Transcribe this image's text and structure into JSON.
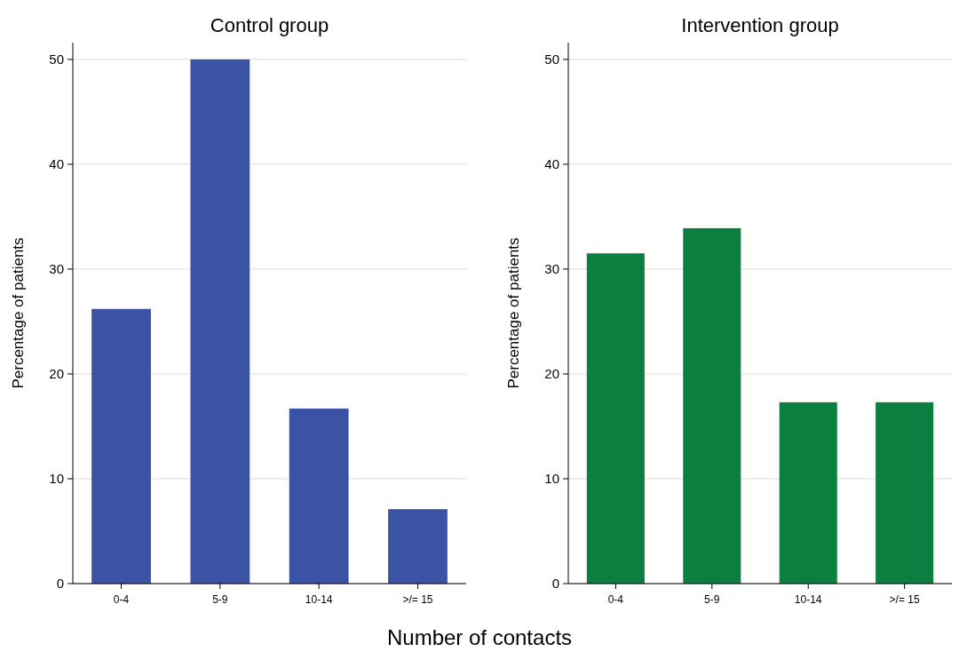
{
  "chart_data": [
    {
      "type": "bar",
      "title": "Control group",
      "ylabel": "Percentage of patients",
      "xlabel": "Number of contacts",
      "categories": [
        "0-4",
        "5-9",
        "10-14",
        ">/= 15"
      ],
      "values": [
        26.2,
        50,
        16.7,
        7.1
      ],
      "color": "#3a53a4",
      "ylim": [
        0,
        51.6
      ],
      "yticks": [
        0,
        10,
        20,
        30,
        40,
        50
      ],
      "grid": "y"
    },
    {
      "type": "bar",
      "title": "Intervention group",
      "ylabel": "Percentage of patients",
      "categories": [
        "0-4",
        "5-9",
        "10-14",
        ">/= 15"
      ],
      "values": [
        31.5,
        33.9,
        17.3,
        17.3
      ],
      "color": "#0a7f3f",
      "ylim": [
        0,
        51.6
      ],
      "yticks": [
        0,
        10,
        20,
        30,
        40,
        50
      ],
      "grid": "y"
    }
  ]
}
